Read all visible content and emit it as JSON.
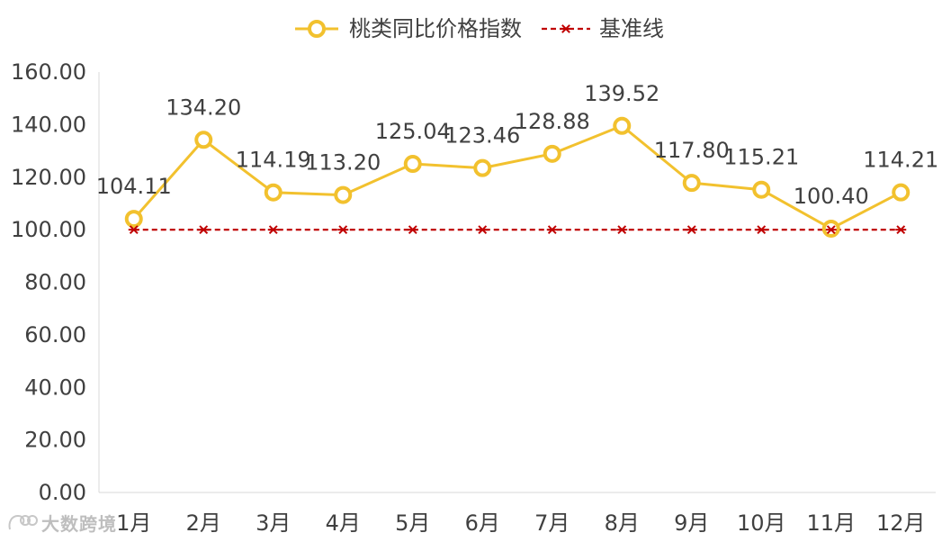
{
  "chart_data": {
    "type": "line",
    "categories": [
      "1月",
      "2月",
      "3月",
      "4月",
      "5月",
      "6月",
      "7月",
      "8月",
      "9月",
      "10月",
      "11月",
      "12月"
    ],
    "series": [
      {
        "name": "桃类同比价格指数",
        "values": [
          104.11,
          134.2,
          114.19,
          113.2,
          125.04,
          123.46,
          128.88,
          139.52,
          117.8,
          115.21,
          100.4,
          114.21
        ],
        "color": "#F2C12E",
        "marker": "circle",
        "line_style": "solid",
        "data_labels": [
          "104.11",
          "134.20",
          "114.19",
          "113.20",
          "125.04",
          "123.46",
          "128.88",
          "139.52",
          "117.80",
          "115.21",
          "100.40",
          "114.21"
        ]
      },
      {
        "name": "基准线",
        "values": [
          100,
          100,
          100,
          100,
          100,
          100,
          100,
          100,
          100,
          100,
          100,
          100
        ],
        "color": "#C00000",
        "marker": "star",
        "line_style": "dashed"
      }
    ],
    "y_ticks": [
      "0.00",
      "20.00",
      "40.00",
      "60.00",
      "80.00",
      "100.00",
      "120.00",
      "140.00",
      "160.00"
    ],
    "ylim": [
      0,
      160
    ],
    "grid": false,
    "legend_position": "top-center"
  },
  "watermark": {
    "text": "大数跨境"
  }
}
